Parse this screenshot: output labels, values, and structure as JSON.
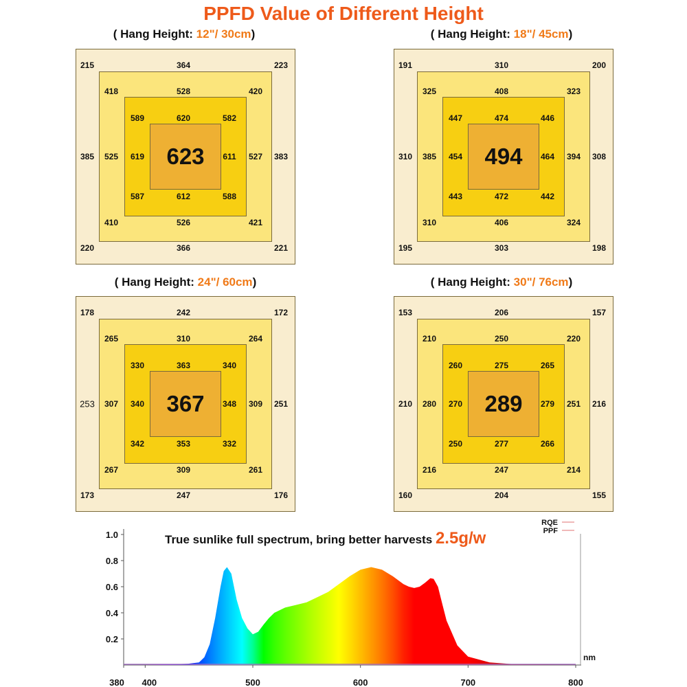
{
  "title": "PPFD Value of Different Height",
  "panels": [
    {
      "label_prefix": "( Hang Height: ",
      "label_value": "12\"/ 30cm",
      "label_suffix": ")",
      "center": "623",
      "outer": [
        "215",
        "364",
        "223",
        "385",
        "383",
        "220",
        "366",
        "221"
      ],
      "middle": [
        "418",
        "528",
        "420",
        "525",
        "527",
        "410",
        "526",
        "421"
      ],
      "inner": [
        "589",
        "620",
        "582",
        "619",
        "611",
        "587",
        "612",
        "588"
      ]
    },
    {
      "label_prefix": "( Hang Height: ",
      "label_value": "18\"/ 45cm",
      "label_suffix": ")",
      "center": "494",
      "outer": [
        "191",
        "310",
        "200",
        "310",
        "308",
        "195",
        "303",
        "198"
      ],
      "middle": [
        "325",
        "408",
        "323",
        "385",
        "394",
        "310",
        "406",
        "324"
      ],
      "inner": [
        "447",
        "474",
        "446",
        "454",
        "464",
        "443",
        "472",
        "442"
      ]
    },
    {
      "label_prefix": "( Hang Height: ",
      "label_value": "24\"/ 60cm",
      "label_suffix": ")",
      "center": "367",
      "outer": [
        "178",
        "242",
        "172",
        "253",
        "251",
        "173",
        "247",
        "176"
      ],
      "middle": [
        "265",
        "310",
        "264",
        "307",
        "309",
        "267",
        "309",
        "261"
      ],
      "inner": [
        "330",
        "363",
        "340",
        "340",
        "348",
        "342",
        "353",
        "332"
      ]
    },
    {
      "label_prefix": "( Hang Height: ",
      "label_value": "30\"/ 76cm",
      "label_suffix": ")",
      "center": "289",
      "outer": [
        "153",
        "206",
        "157",
        "210",
        "216",
        "160",
        "204",
        "155"
      ],
      "middle": [
        "210",
        "250",
        "220",
        "280",
        "251",
        "216",
        "247",
        "214"
      ],
      "inner": [
        "260",
        "275",
        "265",
        "270",
        "279",
        "250",
        "277",
        "266"
      ]
    }
  ],
  "colors": {
    "outer": "#f9edcf",
    "middle": "#fbe57c",
    "inner": "#f7cf12",
    "center": "#eeb033",
    "border": "#7a6a3a",
    "accent": "#ee5a1a"
  },
  "chart_data": {
    "type": "area",
    "title_prefix": "True sunlike full spectrum, bring better harvests ",
    "title_highlight": "2.5g/w",
    "xlabel": "nm",
    "ylabel": "",
    "xlim": [
      380,
      800
    ],
    "ylim": [
      0,
      1.0
    ],
    "x_ticks": [
      "380",
      "400",
      "500",
      "600",
      "700",
      "800"
    ],
    "y_ticks": [
      "0.2",
      "0.4",
      "0.6",
      "0.8",
      "1.0"
    ],
    "legend": [
      "RQE",
      "PPF"
    ],
    "series": [
      {
        "name": "spectrum",
        "x": [
          380,
          400,
          420,
          440,
          450,
          455,
          460,
          465,
          470,
          473,
          476,
          480,
          485,
          490,
          495,
          500,
          505,
          510,
          515,
          520,
          530,
          540,
          550,
          560,
          570,
          580,
          590,
          600,
          610,
          620,
          630,
          640,
          645,
          650,
          655,
          660,
          665,
          668,
          672,
          676,
          680,
          690,
          700,
          720,
          740,
          760,
          780,
          800
        ],
        "y": [
          0.0,
          0.0,
          0.003,
          0.01,
          0.02,
          0.06,
          0.16,
          0.36,
          0.6,
          0.72,
          0.75,
          0.7,
          0.5,
          0.36,
          0.28,
          0.235,
          0.255,
          0.31,
          0.36,
          0.4,
          0.44,
          0.46,
          0.48,
          0.52,
          0.56,
          0.62,
          0.68,
          0.73,
          0.75,
          0.73,
          0.68,
          0.62,
          0.6,
          0.59,
          0.6,
          0.63,
          0.665,
          0.66,
          0.6,
          0.47,
          0.34,
          0.15,
          0.065,
          0.02,
          0.008,
          0.004,
          0.002,
          0.001
        ]
      }
    ]
  }
}
